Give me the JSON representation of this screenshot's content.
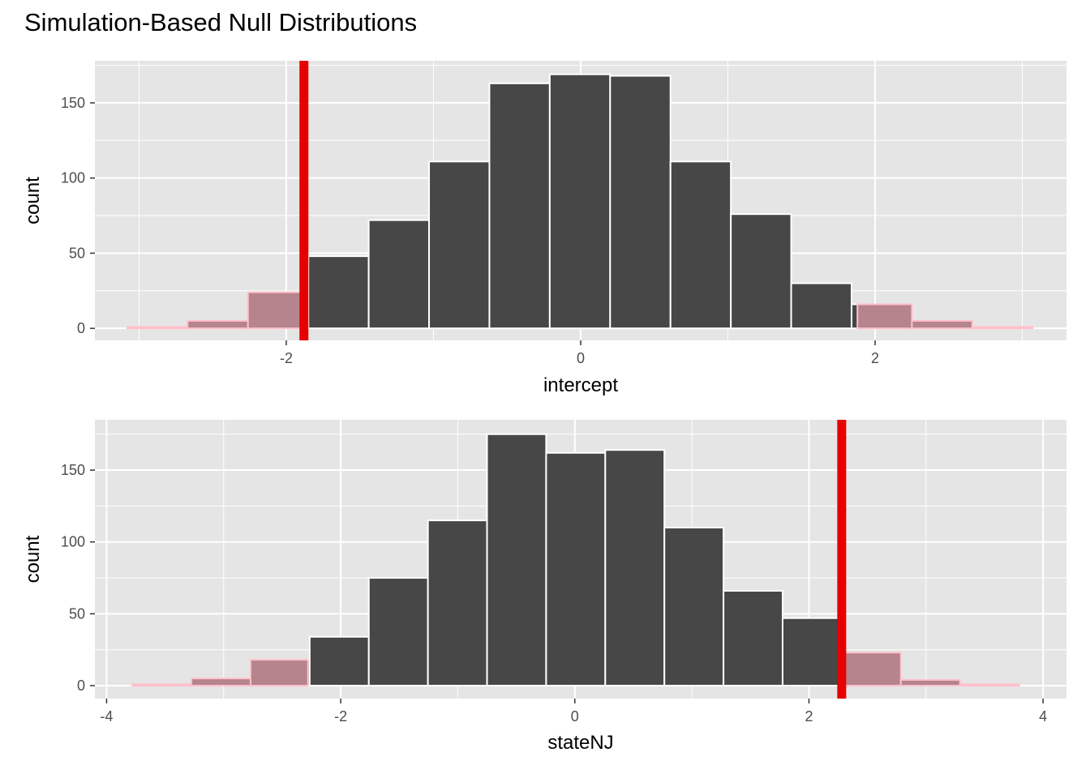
{
  "title": "Simulation-Based Null Distributions",
  "colors": {
    "panel_bg": "#e5e5e5",
    "grid": "#ffffff",
    "bar_fill": "#474747",
    "shade_fill": "#b5848d",
    "bar_outline": "#ffffff",
    "shade_outline": "#ffc0cb",
    "obs_line": "#e60000"
  },
  "chart_data": [
    {
      "type": "bar",
      "subtype": "histogram",
      "xlabel": "intercept",
      "ylabel": "count",
      "xlim": [
        -3.3,
        3.3
      ],
      "ylim": [
        -8,
        178
      ],
      "x_ticks": [
        -2,
        0,
        2
      ],
      "x_tick_labels": [
        "-2",
        "0",
        "2"
      ],
      "y_ticks": [
        0,
        50,
        100,
        150
      ],
      "y_tick_labels": [
        "0",
        "50",
        "100",
        "150"
      ],
      "bin_width": 0.41,
      "bins": [
        {
          "start": -3.08,
          "count": 1
        },
        {
          "start": -2.67,
          "count": 5
        },
        {
          "start": -2.26,
          "count": 24
        },
        {
          "start": -1.85,
          "count": 48
        },
        {
          "start": -1.44,
          "count": 72
        },
        {
          "start": -1.03,
          "count": 111
        },
        {
          "start": -0.62,
          "count": 163
        },
        {
          "start": -0.21,
          "count": 169
        },
        {
          "start": 0.2,
          "count": 168
        },
        {
          "start": 0.61,
          "count": 111
        },
        {
          "start": 1.02,
          "count": 76
        },
        {
          "start": 1.43,
          "count": 30
        },
        {
          "start": 1.84,
          "count": 16
        },
        {
          "start": 2.25,
          "count": 5
        },
        {
          "start": 2.66,
          "count": 1
        }
      ],
      "observed_stat": -1.88,
      "shade_direction": "two-sided"
    },
    {
      "type": "bar",
      "subtype": "histogram",
      "xlabel": "stateNJ",
      "ylabel": "count",
      "xlim": [
        -4.1,
        4.2
      ],
      "ylim": [
        -9,
        185
      ],
      "x_ticks": [
        -4,
        -2,
        0,
        2,
        4
      ],
      "x_tick_labels": [
        "-4",
        "-2",
        "0",
        "2",
        "4"
      ],
      "y_ticks": [
        0,
        50,
        100,
        150
      ],
      "y_tick_labels": [
        "0",
        "50",
        "100",
        "150"
      ],
      "bin_width": 0.505,
      "bins": [
        {
          "start": -3.78,
          "count": 1
        },
        {
          "start": -3.275,
          "count": 5
        },
        {
          "start": -2.77,
          "count": 18
        },
        {
          "start": -2.265,
          "count": 34
        },
        {
          "start": -1.76,
          "count": 75
        },
        {
          "start": -1.255,
          "count": 115
        },
        {
          "start": -0.75,
          "count": 175
        },
        {
          "start": -0.245,
          "count": 162
        },
        {
          "start": 0.26,
          "count": 164
        },
        {
          "start": 0.765,
          "count": 110
        },
        {
          "start": 1.27,
          "count": 66
        },
        {
          "start": 1.775,
          "count": 47
        },
        {
          "start": 2.28,
          "count": 23
        },
        {
          "start": 2.785,
          "count": 4
        },
        {
          "start": 3.29,
          "count": 1
        }
      ],
      "observed_stat": 2.28,
      "shade_direction": "two-sided"
    }
  ]
}
